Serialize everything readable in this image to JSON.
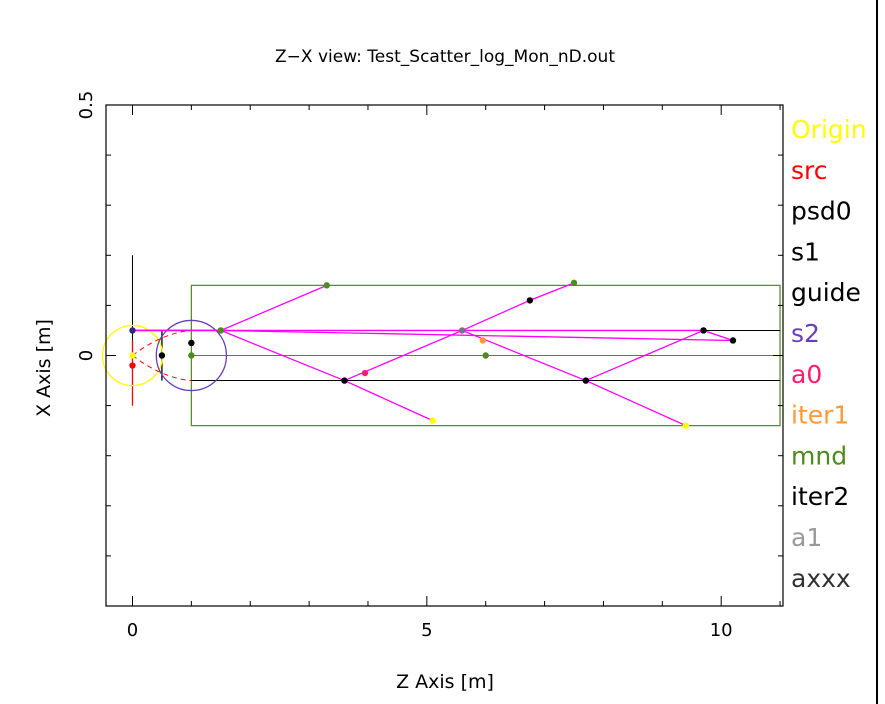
{
  "chart_data": {
    "type": "scatter",
    "title": "Z−X view: Test_Scatter_log_Mon_nD.out",
    "xlabel": "Z Axis [m]",
    "ylabel": "X Axis [m]",
    "xlim": [
      -0.45,
      11.05
    ],
    "ylim": [
      -0.5,
      0.5
    ],
    "xticks": [
      0,
      5,
      10
    ],
    "yticks": [
      0,
      0.5
    ],
    "xtick_labels": [
      "0",
      "5",
      "10"
    ],
    "ytick_labels": [
      "0",
      "0.5"
    ],
    "grid": false,
    "legend_placement": "right",
    "legend": [
      {
        "label": "Origin",
        "color": "#ffff00"
      },
      {
        "label": "src",
        "color": "#ff0000"
      },
      {
        "label": "psd0",
        "color": "#000000"
      },
      {
        "label": "s1",
        "color": "#000000"
      },
      {
        "label": "guide",
        "color": "#000000"
      },
      {
        "label": "s2",
        "color": "#6a3dba"
      },
      {
        "label": "a0",
        "color": "#ff1a6e"
      },
      {
        "label": "iter1",
        "color": "#ff9933"
      },
      {
        "label": "mnd",
        "color": "#4d8c1a"
      },
      {
        "label": "iter2",
        "color": "#000000"
      },
      {
        "label": "a1",
        "color": "#999999"
      },
      {
        "label": "axxx",
        "color": "#333333"
      }
    ],
    "components": {
      "origin_circle": {
        "z": 0,
        "x": 0,
        "r": 0.06,
        "color": "#ffff00"
      },
      "src_line": {
        "z": 0,
        "x1": -0.1,
        "x2": 0.03,
        "color": "#ff0000"
      },
      "psd0_line": {
        "z": 0,
        "x1": -0.1,
        "x2": 0.2,
        "color": "#000000"
      },
      "s1_line": {
        "z": 0.5,
        "x1": -0.05,
        "x2": 0.05,
        "color": "#000000"
      },
      "s2_circle": {
        "z": 1.0,
        "x": 0,
        "r": 0.07,
        "color": "#6a3dba"
      },
      "mnd_box": {
        "z1": 1.0,
        "z2": 11.0,
        "x1": -0.14,
        "x2": 0.14,
        "color": "#4d8c1a"
      },
      "mnd_axis": {
        "z1": 1.0,
        "z2": 11.0,
        "x": 0,
        "color": "#4d8c1a"
      },
      "guide_top": {
        "z1": 0.5,
        "z2": 11.0,
        "x": 0.05,
        "color": "#000000"
      },
      "guide_bottom": {
        "z1": 1.0,
        "z2": 11.0,
        "x": -0.05,
        "color": "#000000"
      }
    },
    "dashed_arcs": [
      {
        "z1": 0.0,
        "x1": 0.0,
        "z2": 1.0,
        "x2": 0.05
      },
      {
        "z1": 0.0,
        "x1": 0.0,
        "z2": 1.0,
        "x2": -0.05
      }
    ],
    "trajectories_color": "#ff00ff",
    "trajectories": [
      [
        [
          0,
          0.05
        ],
        [
          1.5,
          0.05
        ],
        [
          3.3,
          0.14
        ]
      ],
      [
        [
          0,
          0.05
        ],
        [
          1.5,
          0.05
        ],
        [
          3.6,
          -0.05
        ],
        [
          5.1,
          -0.13
        ]
      ],
      [
        [
          0,
          0.05
        ],
        [
          9.7,
          0.05
        ],
        [
          10.2,
          0.03
        ]
      ],
      [
        [
          1.5,
          0.05
        ],
        [
          10.2,
          0.03
        ]
      ],
      [
        [
          3.6,
          -0.05
        ],
        [
          5.6,
          0.05
        ],
        [
          6.75,
          0.11
        ],
        [
          7.5,
          0.145
        ]
      ],
      [
        [
          5.6,
          0.05
        ],
        [
          7.7,
          -0.05
        ],
        [
          9.4,
          -0.14
        ]
      ],
      [
        [
          7.7,
          -0.05
        ],
        [
          9.7,
          0.05
        ]
      ]
    ],
    "events": [
      {
        "z": 0,
        "x": 0,
        "color": "#ffff00"
      },
      {
        "z": 0,
        "x": -0.02,
        "color": "#ff0000"
      },
      {
        "z": 0,
        "x": 0.05,
        "color": "#2a2a80"
      },
      {
        "z": 0.5,
        "x": 0,
        "color": "#000000"
      },
      {
        "z": 1.0,
        "x": 0.025,
        "color": "#000000"
      },
      {
        "z": 1.0,
        "x": 0,
        "color": "#4d8c1a"
      },
      {
        "z": 1.5,
        "x": 0.05,
        "color": "#4d8c1a"
      },
      {
        "z": 3.3,
        "x": 0.14,
        "color": "#4d8c1a"
      },
      {
        "z": 3.6,
        "x": -0.05,
        "color": "#000000"
      },
      {
        "z": 3.95,
        "x": -0.035,
        "color": "#ff1a6e"
      },
      {
        "z": 5.1,
        "x": -0.13,
        "color": "#ffff00"
      },
      {
        "z": 5.6,
        "x": 0.05,
        "color": "#777777"
      },
      {
        "z": 5.95,
        "x": 0.03,
        "color": "#ff9933"
      },
      {
        "z": 6.0,
        "x": 0,
        "color": "#4d8c1a"
      },
      {
        "z": 6.75,
        "x": 0.11,
        "color": "#000000"
      },
      {
        "z": 7.5,
        "x": 0.145,
        "color": "#4d8c1a"
      },
      {
        "z": 7.7,
        "x": -0.05,
        "color": "#000000"
      },
      {
        "z": 9.4,
        "x": -0.14,
        "color": "#ffff00"
      },
      {
        "z": 9.7,
        "x": 0.05,
        "color": "#000000"
      },
      {
        "z": 10.2,
        "x": 0.03,
        "color": "#000000"
      }
    ]
  }
}
